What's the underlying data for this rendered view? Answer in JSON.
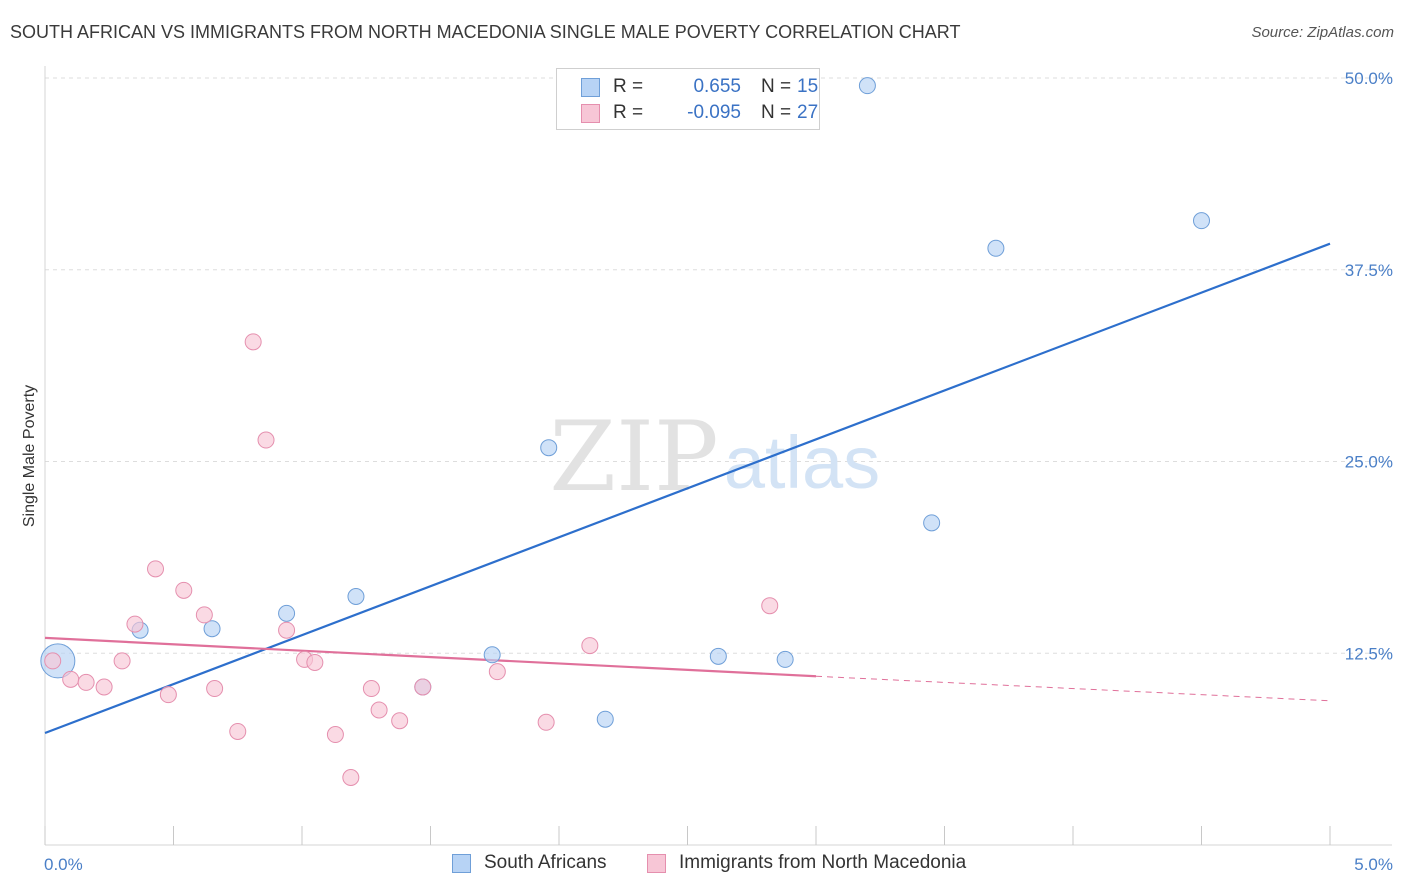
{
  "title": "SOUTH AFRICAN VS IMMIGRANTS FROM NORTH MACEDONIA SINGLE MALE POVERTY CORRELATION CHART",
  "source": "Source: ZipAtlas.com",
  "watermark": {
    "zip": "ZIP",
    "atlas": "atlas"
  },
  "legend": {
    "rows": [
      {
        "r_label": "R =",
        "r_value": "0.655",
        "n_label": "N =",
        "n_value": "15"
      },
      {
        "r_label": "R =",
        "r_value": "-0.095",
        "n_label": "N =",
        "n_value": "27"
      }
    ]
  },
  "bottom_legend": [
    "South Africans",
    "Immigrants from North Macedonia"
  ],
  "colors": {
    "blue_fill": "#b7d3f5",
    "blue_stroke": "#6f9fd8",
    "blue_line": "#2d6fcc",
    "pink_fill": "#f7c6d6",
    "pink_stroke": "#e58fae",
    "pink_line": "#e0709a",
    "tick_text": "#4a7fc7",
    "grid": "#dddddd"
  },
  "chart_data": {
    "type": "scatter",
    "title": "SOUTH AFRICAN VS IMMIGRANTS FROM NORTH MACEDONIA SINGLE MALE POVERTY CORRELATION CHART",
    "xlabel": "",
    "ylabel": "Single Male Poverty",
    "xlim": [
      0,
      5
    ],
    "ylim": [
      0,
      50
    ],
    "x_tick_labels": [
      "0.0%",
      "5.0%"
    ],
    "y_ticks": [
      12.5,
      25.0,
      37.5,
      50.0
    ],
    "y_tick_labels": [
      "12.5%",
      "25.0%",
      "37.5%",
      "50.0%"
    ],
    "grid": true,
    "series": [
      {
        "name": "South Africans",
        "color": "blue",
        "points": [
          {
            "x": 0.05,
            "y": 12.0,
            "big": true
          },
          {
            "x": 0.37,
            "y": 14.0
          },
          {
            "x": 0.65,
            "y": 14.1
          },
          {
            "x": 0.94,
            "y": 15.1
          },
          {
            "x": 1.21,
            "y": 16.2
          },
          {
            "x": 1.47,
            "y": 10.3
          },
          {
            "x": 1.74,
            "y": 12.4
          },
          {
            "x": 1.96,
            "y": 25.9
          },
          {
            "x": 2.18,
            "y": 8.2
          },
          {
            "x": 2.62,
            "y": 12.3
          },
          {
            "x": 2.88,
            "y": 12.1
          },
          {
            "x": 3.2,
            "y": 49.5
          },
          {
            "x": 3.45,
            "y": 21.0
          },
          {
            "x": 3.7,
            "y": 38.9
          },
          {
            "x": 4.5,
            "y": 40.7
          }
        ],
        "trend": {
          "x": [
            0,
            5
          ],
          "y": [
            7.3,
            39.2
          ],
          "dashed_to": null
        }
      },
      {
        "name": "Immigrants from North Macedonia",
        "color": "pink",
        "points": [
          {
            "x": 0.03,
            "y": 12.0
          },
          {
            "x": 0.1,
            "y": 10.8
          },
          {
            "x": 0.16,
            "y": 10.6
          },
          {
            "x": 0.23,
            "y": 10.3
          },
          {
            "x": 0.3,
            "y": 12.0
          },
          {
            "x": 0.35,
            "y": 14.4
          },
          {
            "x": 0.43,
            "y": 18.0
          },
          {
            "x": 0.48,
            "y": 9.8
          },
          {
            "x": 0.54,
            "y": 16.6
          },
          {
            "x": 0.62,
            "y": 15.0
          },
          {
            "x": 0.66,
            "y": 10.2
          },
          {
            "x": 0.75,
            "y": 7.4
          },
          {
            "x": 0.81,
            "y": 32.8
          },
          {
            "x": 0.86,
            "y": 26.4
          },
          {
            "x": 0.94,
            "y": 14.0
          },
          {
            "x": 1.01,
            "y": 12.1
          },
          {
            "x": 1.05,
            "y": 11.9
          },
          {
            "x": 1.13,
            "y": 7.2
          },
          {
            "x": 1.19,
            "y": 4.4
          },
          {
            "x": 1.27,
            "y": 10.2
          },
          {
            "x": 1.3,
            "y": 8.8
          },
          {
            "x": 1.38,
            "y": 8.1
          },
          {
            "x": 1.47,
            "y": 10.3
          },
          {
            "x": 1.76,
            "y": 11.3
          },
          {
            "x": 1.95,
            "y": 8.0
          },
          {
            "x": 2.12,
            "y": 13.0
          },
          {
            "x": 2.82,
            "y": 15.6
          }
        ],
        "trend": {
          "x": [
            0,
            3.0
          ],
          "y": [
            13.5,
            11.0
          ],
          "dashed_to": {
            "x": 5,
            "y": 9.4
          }
        }
      }
    ]
  }
}
